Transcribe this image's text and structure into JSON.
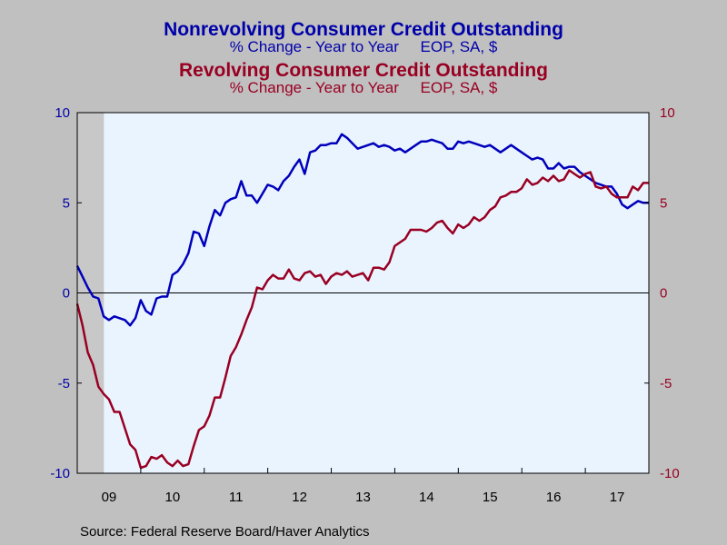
{
  "chart_data": {
    "type": "line",
    "titles": [
      {
        "title": "Nonrevolving Consumer Credit Outstanding",
        "subtitle": "% Change - Year to Year     EOP, SA, $",
        "color": "#0000aa"
      },
      {
        "title": "Revolving Consumer Credit Outstanding",
        "subtitle": "% Change - Year to Year     EOP, SA, $",
        "color": "#990022"
      }
    ],
    "source": "Source:  Federal Reserve Board/Haver Analytics",
    "left_axis": {
      "ylim": [
        -10,
        10
      ],
      "ticks": [
        "10",
        "5",
        "0",
        "-5",
        "-10"
      ],
      "color": "#0000aa"
    },
    "right_axis": {
      "ylim": [
        -10,
        10
      ],
      "ticks": [
        "10",
        "5",
        "0",
        "-5",
        "-10"
      ],
      "color": "#990022"
    },
    "x_axis": {
      "ticks": [
        "09",
        "10",
        "11",
        "12",
        "13",
        "14",
        "15",
        "16",
        "17"
      ],
      "start_year": 2009,
      "end_year": 2018
    },
    "recession_shade": {
      "start": 2009.0,
      "end": 2009.42
    },
    "grid": false,
    "zero_line": true,
    "series": [
      {
        "name": "Nonrevolving Consumer Credit Outstanding",
        "color": "#0000bb",
        "start": 2009.0,
        "step": 0.0833,
        "values": [
          1.5,
          0.9,
          0.3,
          -0.2,
          -0.3,
          -1.3,
          -1.5,
          -1.3,
          -1.4,
          -1.5,
          -1.8,
          -1.4,
          -0.4,
          -1.0,
          -1.2,
          -0.3,
          -0.2,
          -0.2,
          1.0,
          1.2,
          1.6,
          2.2,
          3.4,
          3.3,
          2.6,
          3.7,
          4.6,
          4.3,
          5.0,
          5.2,
          5.3,
          6.2,
          5.4,
          5.4,
          5.0,
          5.5,
          6.0,
          5.9,
          5.7,
          6.2,
          6.5,
          7.0,
          7.4,
          6.6,
          7.8,
          7.9,
          8.2,
          8.2,
          8.3,
          8.3,
          8.8,
          8.6,
          8.3,
          8.0,
          8.1,
          8.2,
          8.3,
          8.1,
          8.2,
          8.1,
          7.9,
          8.0,
          7.8,
          8.0,
          8.2,
          8.4,
          8.4,
          8.5,
          8.4,
          8.3,
          8.0,
          8.0,
          8.4,
          8.3,
          8.4,
          8.3,
          8.2,
          8.1,
          8.2,
          8.0,
          7.8,
          8.0,
          8.2,
          8.0,
          7.8,
          7.6,
          7.4,
          7.5,
          7.4,
          6.9,
          6.9,
          7.2,
          6.9,
          7.0,
          7.0,
          6.7,
          6.5,
          6.3,
          6.1,
          6.0,
          5.9,
          5.9,
          5.5,
          4.9,
          4.7,
          4.9,
          5.1,
          5.0,
          5.0
        ]
      },
      {
        "name": "Revolving Consumer Credit Outstanding",
        "color": "#990022",
        "start": 2009.0,
        "step": 0.0833,
        "values": [
          -0.6,
          -1.8,
          -3.3,
          -4.0,
          -5.2,
          -5.6,
          -5.9,
          -6.6,
          -6.6,
          -7.5,
          -8.4,
          -8.7,
          -9.7,
          -9.6,
          -9.1,
          -9.2,
          -9.0,
          -9.4,
          -9.6,
          -9.3,
          -9.6,
          -9.5,
          -8.5,
          -7.6,
          -7.4,
          -6.8,
          -5.8,
          -5.8,
          -4.7,
          -3.5,
          -3.0,
          -2.3,
          -1.5,
          -0.8,
          0.3,
          0.2,
          0.7,
          1.0,
          0.8,
          0.8,
          1.3,
          0.8,
          0.7,
          1.1,
          1.2,
          0.9,
          1.0,
          0.5,
          0.9,
          1.1,
          1.0,
          1.2,
          0.9,
          1.0,
          1.1,
          0.7,
          1.4,
          1.4,
          1.3,
          1.7,
          2.6,
          2.8,
          3.0,
          3.5,
          3.5,
          3.5,
          3.4,
          3.6,
          3.9,
          4.0,
          3.6,
          3.3,
          3.8,
          3.6,
          3.8,
          4.2,
          4.0,
          4.2,
          4.6,
          4.8,
          5.3,
          5.4,
          5.6,
          5.6,
          5.8,
          6.3,
          6.0,
          6.1,
          6.4,
          6.2,
          6.5,
          6.2,
          6.3,
          6.8,
          6.6,
          6.4,
          6.6,
          6.7,
          5.9,
          5.8,
          5.9,
          5.5,
          5.3,
          5.3,
          5.3,
          5.9,
          5.7,
          6.1,
          6.1
        ]
      }
    ]
  }
}
